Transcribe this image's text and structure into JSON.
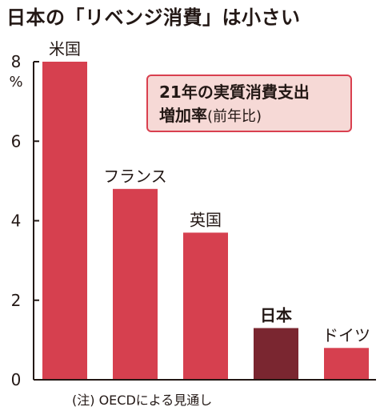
{
  "title": "日本の「リベンジ消費」は小さい",
  "legend": {
    "line1": "21年の実質消費支出",
    "line2_bold": "増加率",
    "line2_note": "(前年比)"
  },
  "footnote": "(注) OECDによる見通し",
  "colors": {
    "bar": "#d6404f",
    "highlight": "#7a2630",
    "axis": "#231815",
    "legend_fill": "#f6d9d6",
    "legend_border": "#d9404f"
  },
  "chart_data": {
    "type": "bar",
    "categories": [
      "米国",
      "フランス",
      "英国",
      "日本",
      "ドイツ"
    ],
    "values": [
      8.0,
      4.8,
      3.7,
      1.3,
      0.8
    ],
    "highlight": "日本",
    "ylim": [
      0,
      8
    ],
    "yticks": [
      0,
      2,
      4,
      6,
      8
    ],
    "yunit": "%",
    "grid": false
  }
}
